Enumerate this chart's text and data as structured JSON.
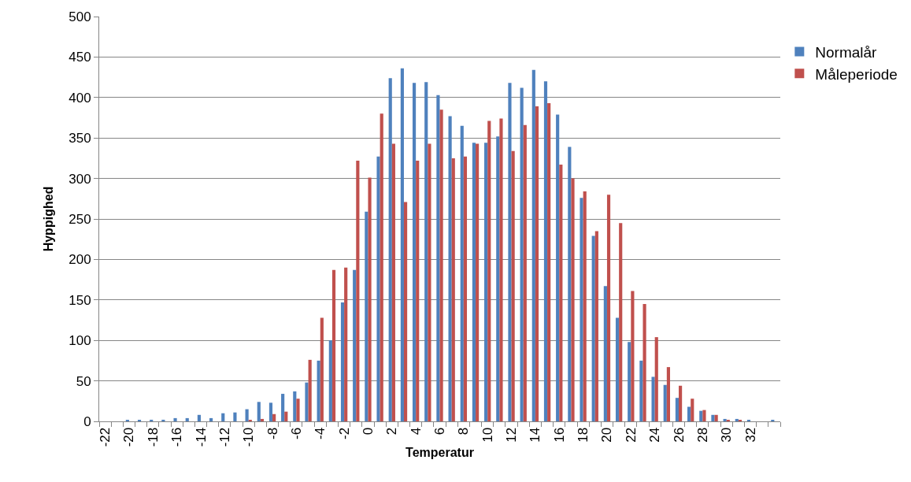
{
  "chart_data": {
    "type": "bar",
    "xlabel": "Temperatur",
    "ylabel": "Hyppighed",
    "categories": [
      "-22",
      null,
      "-20",
      null,
      "-18",
      null,
      "-16",
      null,
      "-14",
      null,
      "-12",
      null,
      "-10",
      null,
      "-8",
      null,
      "-6",
      null,
      "-4",
      null,
      "-2",
      null,
      "0",
      null,
      "2",
      null,
      "4",
      null,
      "6",
      null,
      "8",
      null,
      "10",
      null,
      "12",
      null,
      "14",
      null,
      "16",
      null,
      "18",
      null,
      "20",
      null,
      "22",
      null,
      "24",
      null,
      "26",
      null,
      "28",
      null,
      "30",
      null,
      "32",
      null,
      null
    ],
    "series": [
      {
        "name": "Normalår",
        "color": "#4f81bd",
        "values": [
          0,
          0,
          1,
          1,
          2,
          2,
          4,
          4,
          8,
          4,
          10,
          11,
          15,
          24,
          23,
          34,
          37,
          48,
          75,
          100,
          147,
          187,
          259,
          327,
          424,
          436,
          418,
          419,
          403,
          377,
          365,
          344,
          344,
          352,
          418,
          412,
          434,
          420,
          379,
          339,
          276,
          229,
          167,
          128,
          98,
          75,
          55,
          45,
          29,
          18,
          13,
          8,
          3,
          3,
          1,
          0,
          1
        ]
      },
      {
        "name": "Måleperiode",
        "color": "#c0504d",
        "values": [
          0,
          0,
          0,
          0,
          0,
          0,
          0,
          0,
          0,
          0,
          0,
          0,
          1,
          3,
          9,
          12,
          28,
          76,
          128,
          187,
          190,
          322,
          301,
          380,
          343,
          271,
          322,
          343,
          385,
          325,
          327,
          343,
          371,
          374,
          334,
          366,
          389,
          393,
          317,
          300,
          284,
          235,
          280,
          245,
          161,
          145,
          104,
          67,
          44,
          28,
          14,
          8,
          1,
          1,
          0,
          0,
          0
        ]
      }
    ],
    "ylim": [
      0,
      500
    ],
    "yticks": [
      0,
      50,
      100,
      150,
      200,
      250,
      300,
      350,
      400,
      450,
      500
    ],
    "grid": "y",
    "legend": "top right"
  }
}
